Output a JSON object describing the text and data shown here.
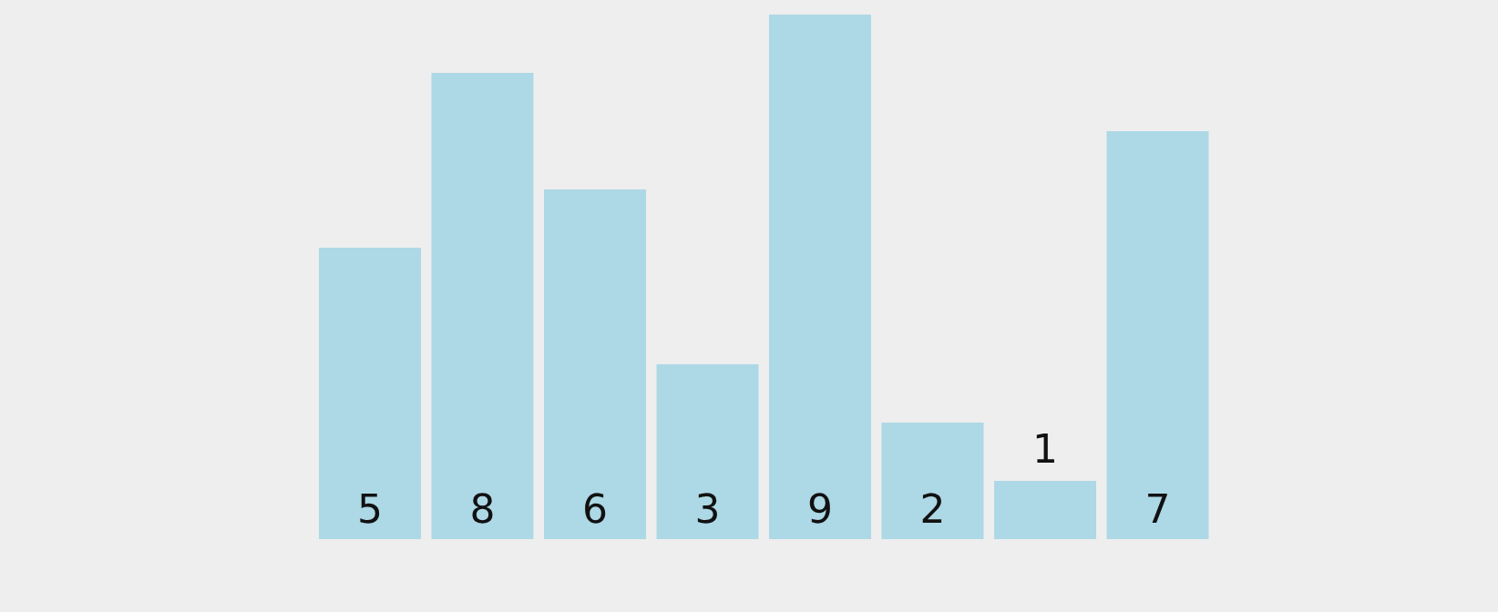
{
  "chart_data": {
    "type": "bar",
    "categories": [
      null,
      null,
      null,
      null,
      null,
      null,
      null,
      null
    ],
    "values": [
      5,
      8,
      6,
      3,
      9,
      2,
      1,
      7
    ],
    "color": "#add8e6",
    "data_labels": true
  }
}
